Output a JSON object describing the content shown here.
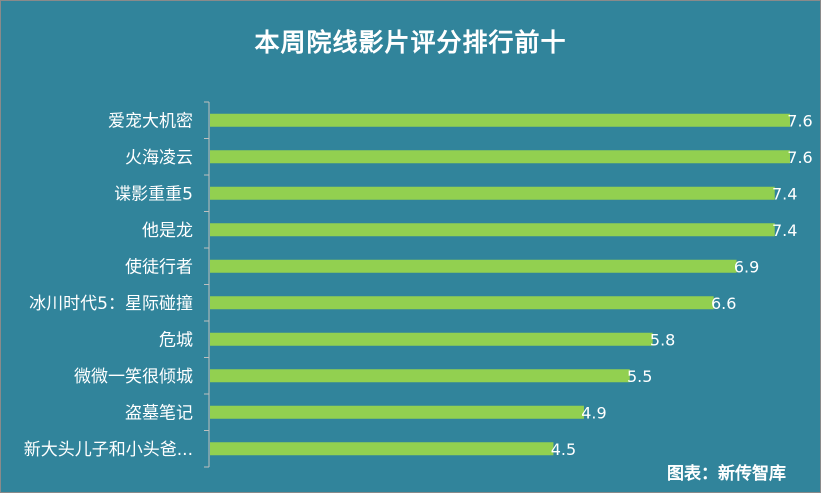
{
  "chart_data": {
    "type": "bar",
    "orientation": "horizontal",
    "title": "本周院线影片评分排行前十",
    "categories": [
      "爱宠大机密",
      "火海凌云",
      "谍影重重5",
      "他是龙",
      "使徒行者",
      "冰川时代5：星际碰撞",
      "危城",
      "微微一笑很倾城",
      "盗墓笔记",
      "新大头儿子和小头爸..."
    ],
    "values": [
      7.6,
      7.6,
      7.4,
      7.4,
      6.9,
      6.6,
      5.8,
      5.5,
      4.9,
      4.5
    ],
    "value_labels": [
      "7.6",
      "7.6",
      "7.4",
      "7.4",
      "6.9",
      "6.6",
      "5.8",
      "5.5",
      "4.9",
      "4.5"
    ],
    "xlim": [
      0,
      7.6
    ],
    "grid": false,
    "legend": "none",
    "bar_color": "#92d050",
    "background_color": "#31849b"
  },
  "source": "图表：新传智库"
}
